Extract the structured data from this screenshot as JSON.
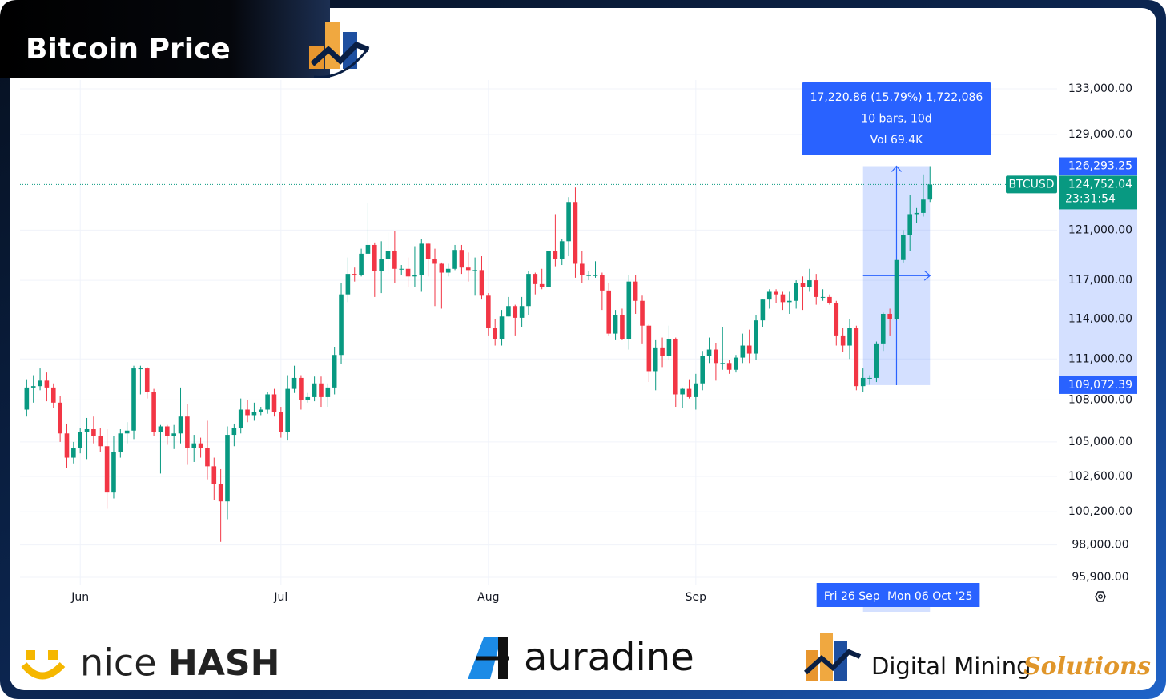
{
  "chart_data": {
    "type": "candlestick",
    "title": "Bitcoin Price",
    "symbol": "BTCUSD",
    "log_scale": true,
    "grid": true,
    "up_color": "#089981",
    "down_color": "#f23645",
    "x": [
      "2025-05-24",
      "2025-05-25",
      "2025-05-26",
      "2025-05-27",
      "2025-05-28",
      "2025-05-29",
      "2025-05-30",
      "2025-05-31",
      "2025-06-01",
      "2025-06-02",
      "2025-06-03",
      "2025-06-04",
      "2025-06-05",
      "2025-06-06",
      "2025-06-07",
      "2025-06-08",
      "2025-06-09",
      "2025-06-10",
      "2025-06-11",
      "2025-06-12",
      "2025-06-13",
      "2025-06-14",
      "2025-06-15",
      "2025-06-16",
      "2025-06-17",
      "2025-06-18",
      "2025-06-19",
      "2025-06-20",
      "2025-06-21",
      "2025-06-22",
      "2025-06-23",
      "2025-06-24",
      "2025-06-25",
      "2025-06-26",
      "2025-06-27",
      "2025-06-28",
      "2025-06-29",
      "2025-06-30",
      "2025-07-01",
      "2025-07-02",
      "2025-07-03",
      "2025-07-04",
      "2025-07-05",
      "2025-07-06",
      "2025-07-07",
      "2025-07-08",
      "2025-07-09",
      "2025-07-10",
      "2025-07-11",
      "2025-07-12",
      "2025-07-13",
      "2025-07-14",
      "2025-07-15",
      "2025-07-16",
      "2025-07-17",
      "2025-07-18",
      "2025-07-19",
      "2025-07-20",
      "2025-07-21",
      "2025-07-22",
      "2025-07-23",
      "2025-07-24",
      "2025-07-25",
      "2025-07-26",
      "2025-07-27",
      "2025-07-28",
      "2025-07-29",
      "2025-07-30",
      "2025-07-31",
      "2025-08-01",
      "2025-08-02",
      "2025-08-03",
      "2025-08-04",
      "2025-08-05",
      "2025-08-06",
      "2025-08-07",
      "2025-08-08",
      "2025-08-09",
      "2025-08-10",
      "2025-08-11",
      "2025-08-12",
      "2025-08-13",
      "2025-08-14",
      "2025-08-15",
      "2025-08-16",
      "2025-08-17",
      "2025-08-18",
      "2025-08-19",
      "2025-08-20",
      "2025-08-21",
      "2025-08-22",
      "2025-08-23",
      "2025-08-24",
      "2025-08-25",
      "2025-08-26",
      "2025-08-27",
      "2025-08-28",
      "2025-08-29",
      "2025-08-30",
      "2025-08-31",
      "2025-09-01",
      "2025-09-02",
      "2025-09-03",
      "2025-09-04",
      "2025-09-05",
      "2025-09-06",
      "2025-09-07",
      "2025-09-08",
      "2025-09-09",
      "2025-09-10",
      "2025-09-11",
      "2025-09-12",
      "2025-09-13",
      "2025-09-14",
      "2025-09-15",
      "2025-09-16",
      "2025-09-17",
      "2025-09-18",
      "2025-09-19",
      "2025-09-20",
      "2025-09-21",
      "2025-09-22",
      "2025-09-23",
      "2025-09-24",
      "2025-09-25",
      "2025-09-26",
      "2025-09-27",
      "2025-09-28",
      "2025-09-29",
      "2025-09-30",
      "2025-10-01",
      "2025-10-02",
      "2025-10-03",
      "2025-10-04",
      "2025-10-05",
      "2025-10-06"
    ],
    "open": [
      107300,
      108900,
      109000,
      109400,
      108900,
      107800,
      105600,
      103900,
      104600,
      105700,
      105900,
      105400,
      104700,
      101500,
      104300,
      105600,
      105800,
      110300,
      110300,
      108600,
      105700,
      106100,
      105400,
      105600,
      106800,
      104600,
      104900,
      104600,
      103300,
      102100,
      100900,
      105500,
      106000,
      107300,
      106900,
      107100,
      107300,
      108400,
      107100,
      105700,
      108800,
      109600,
      108000,
      108200,
      109200,
      108200,
      108900,
      111300,
      115900,
      117500,
      117400,
      119100,
      119800,
      117700,
      118700,
      119300,
      117900,
      117900,
      117300,
      117400,
      119900,
      118700,
      118300,
      117600,
      117900,
      119400,
      118000,
      117800,
      117800,
      115800,
      113300,
      112500,
      114200,
      115000,
      114100,
      115000,
      117500,
      116700,
      116500,
      119300,
      118700,
      120100,
      123300,
      118300,
      117400,
      117400,
      117400,
      116200,
      112900,
      114300,
      112500,
      116900,
      115400,
      113500,
      110100,
      111800,
      111200,
      112500,
      108400,
      108800,
      108200,
      109200,
      111200,
      111700,
      110700,
      110700,
      110200,
      111100,
      112000,
      111400,
      113900,
      115500,
      116100,
      115900,
      115300,
      115400,
      116800,
      116500,
      117000,
      115700,
      115700,
      115200,
      112700,
      112000,
      113300,
      109000,
      109600,
      109600,
      112100,
      114400,
      114000,
      118600,
      120600,
      122300,
      122400,
      123500
    ],
    "high": [
      109500,
      109800,
      110300,
      110000,
      109200,
      108300,
      106300,
      105000,
      106000,
      106700,
      106800,
      106000,
      105900,
      105400,
      105900,
      106400,
      110500,
      110500,
      110400,
      108800,
      106200,
      106200,
      106200,
      108900,
      107700,
      105500,
      105300,
      106500,
      103900,
      103100,
      106100,
      106300,
      108100,
      108000,
      107800,
      107500,
      108600,
      108800,
      107500,
      109800,
      110500,
      109800,
      108500,
      109700,
      109700,
      109200,
      111900,
      116800,
      118800,
      118000,
      119500,
      123200,
      120000,
      120100,
      120800,
      120900,
      118200,
      118800,
      119700,
      120300,
      120000,
      119500,
      118400,
      118300,
      119800,
      119800,
      119200,
      118800,
      118900,
      116000,
      114000,
      114700,
      115700,
      115100,
      115700,
      117700,
      117600,
      117900,
      119300,
      122300,
      120300,
      123700,
      124500,
      119300,
      117700,
      118500,
      117600,
      116800,
      114700,
      114800,
      117400,
      117400,
      115800,
      113600,
      112400,
      112600,
      113500,
      112600,
      108900,
      109500,
      109900,
      111600,
      112600,
      112200,
      113400,
      110900,
      111300,
      112900,
      113200,
      114300,
      115500,
      116300,
      116300,
      116100,
      116100,
      117000,
      117300,
      117900,
      117500,
      116300,
      115900,
      115400,
      113300,
      114000,
      113500,
      110300,
      109800,
      112300,
      114500,
      114800,
      118600,
      121000,
      123900,
      122800,
      125600,
      126293.25
    ],
    "low": [
      106800,
      107800,
      108700,
      107900,
      107400,
      105000,
      103200,
      103500,
      104200,
      103800,
      104900,
      104300,
      100400,
      101100,
      103900,
      104900,
      105200,
      108400,
      108100,
      105400,
      102800,
      104800,
      104500,
      104900,
      103400,
      103600,
      103900,
      102400,
      101000,
      98200,
      99700,
      104700,
      105600,
      106400,
      106500,
      106900,
      107000,
      106800,
      105300,
      105100,
      108500,
      107300,
      107800,
      107900,
      107500,
      107500,
      108400,
      110600,
      115300,
      116900,
      117300,
      119100,
      115700,
      116000,
      117500,
      116800,
      117400,
      116500,
      116500,
      116100,
      117300,
      115000,
      114800,
      117300,
      117800,
      117500,
      116900,
      115800,
      115500,
      112700,
      112000,
      112000,
      114200,
      112700,
      113400,
      114300,
      115900,
      116300,
      116500,
      118100,
      118200,
      118900,
      117200,
      116800,
      117000,
      117200,
      114700,
      112700,
      112400,
      112400,
      111700,
      114400,
      112100,
      109300,
      108700,
      110400,
      110900,
      107500,
      107400,
      108100,
      107300,
      108700,
      110700,
      109400,
      110200,
      109900,
      110000,
      110700,
      110700,
      110900,
      113400,
      114800,
      115200,
      114700,
      114400,
      114800,
      114700,
      116100,
      115100,
      115400,
      115100,
      112000,
      111500,
      111000,
      108700,
      108600,
      109100,
      109300,
      111600,
      112700,
      113900,
      118400,
      119300,
      121600,
      122100,
      123300
    ],
    "close": [
      108900,
      109000,
      109400,
      108900,
      107800,
      105600,
      103900,
      104600,
      105700,
      105900,
      105400,
      104700,
      101500,
      104300,
      105600,
      105800,
      110300,
      110300,
      108600,
      105700,
      106100,
      105400,
      105600,
      106800,
      104600,
      104900,
      104600,
      103300,
      102100,
      100900,
      105500,
      106000,
      107300,
      106900,
      107100,
      107300,
      108400,
      107100,
      105700,
      108800,
      109600,
      108000,
      108200,
      109200,
      108200,
      108900,
      111300,
      115900,
      117500,
      117400,
      119100,
      119800,
      117700,
      118700,
      119300,
      117900,
      117900,
      117300,
      117400,
      119900,
      118700,
      118300,
      117600,
      117900,
      119400,
      118000,
      117800,
      117800,
      115800,
      113300,
      112500,
      114200,
      115000,
      114100,
      115000,
      117500,
      116700,
      116500,
      119300,
      118700,
      120100,
      123300,
      118300,
      117400,
      117400,
      117400,
      116200,
      112900,
      114300,
      112500,
      116900,
      115400,
      113500,
      110100,
      111800,
      111200,
      112500,
      108400,
      108800,
      108200,
      109200,
      111200,
      111700,
      110700,
      110700,
      110200,
      111100,
      112000,
      111400,
      113900,
      115500,
      116100,
      115900,
      115300,
      115400,
      116800,
      116500,
      117000,
      115700,
      115700,
      115200,
      112700,
      112000,
      113300,
      109000,
      109600,
      109600,
      112100,
      114400,
      114000,
      118600,
      120600,
      122300,
      122400,
      123500,
      124752.04
    ],
    "xlim": [
      "2025-05-23",
      "2025-10-25"
    ],
    "xticks": [
      {
        "value": "2025-06-01",
        "label": "Jun"
      },
      {
        "value": "2025-07-01",
        "label": "Jul"
      },
      {
        "value": "2025-08-01",
        "label": "Aug"
      },
      {
        "value": "2025-09-01",
        "label": "Sep"
      }
    ],
    "ylim": [
      95900,
      133000
    ],
    "yticks": [
      {
        "value": 133000,
        "label": "133,000.00"
      },
      {
        "value": 129000,
        "label": "129,000.00"
      },
      {
        "value": 121000,
        "label": "121,000.00"
      },
      {
        "value": 117000,
        "label": "117,000.00"
      },
      {
        "value": 114000,
        "label": "114,000.00"
      },
      {
        "value": 111000,
        "label": "111,000.00"
      },
      {
        "value": 108000,
        "label": "108,000.00"
      },
      {
        "value": 105000,
        "label": "105,000.00"
      },
      {
        "value": 102600,
        "label": "102,600.00"
      },
      {
        "value": 100200,
        "label": "100,200.00"
      },
      {
        "value": 98000,
        "label": "98,000.00"
      },
      {
        "value": 95900,
        "label": "95,900.00"
      }
    ],
    "last_price": {
      "value": 124752.04,
      "label": "124,752.04"
    },
    "countdown": "23:31:54",
    "measure": {
      "start": "2025-09-26",
      "end": "2025-10-06",
      "start_label": "Fri 26 Sep",
      "end_label": "Mon 06 Oct '25",
      "high": {
        "value": 126293.25,
        "label": "126,293.25"
      },
      "low": {
        "value": 109072.39,
        "label": "109,072.39"
      },
      "lines": [
        "17,220.86 (15.79%) 1,722,086",
        "10 bars, 10d",
        "Vol 69.4K"
      ]
    }
  },
  "footer": {
    "nicehash": [
      "nice",
      "HASH"
    ],
    "auradine": "auradine",
    "dms": [
      "Digital Mining",
      "Solutions"
    ]
  }
}
